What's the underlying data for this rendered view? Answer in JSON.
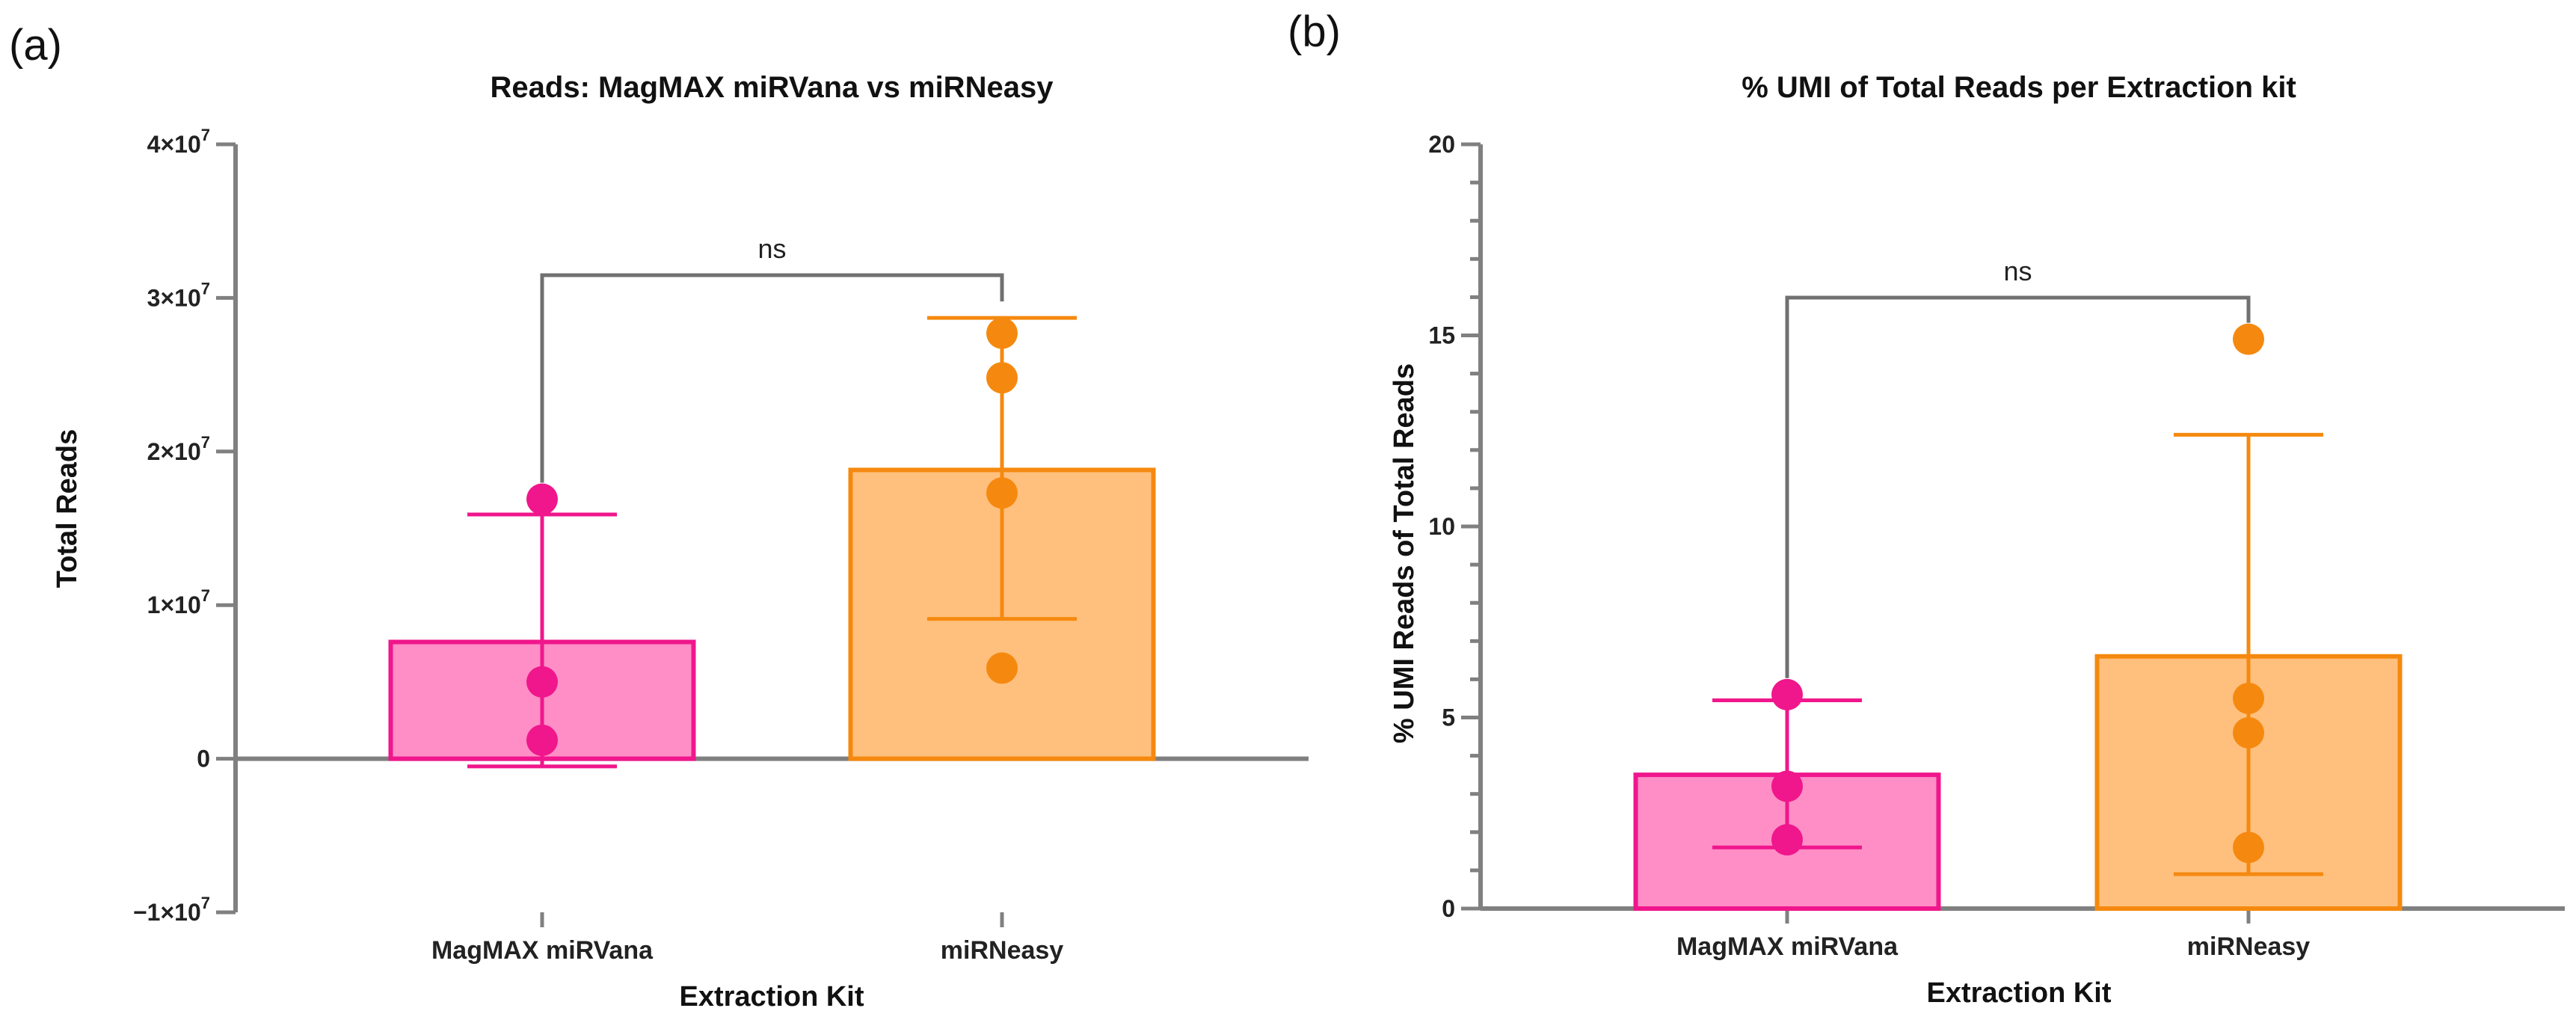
{
  "panels": [
    {
      "label": "(a)",
      "chart_data": {
        "type": "bar",
        "title": "Reads: MagMAX miRVana vs miRNeasy",
        "xlabel": "Extraction Kit",
        "ylabel": "Total Reads",
        "categories": [
          "MagMAX miRVana",
          "miRNeasy"
        ],
        "ylim": [
          -10000000,
          40000000
        ],
        "yticks": [
          {
            "value": -10000000,
            "label": "−1×10",
            "exp": "7"
          },
          {
            "value": 0,
            "label": "0",
            "exp": ""
          },
          {
            "value": 10000000,
            "label": "1×10",
            "exp": "7"
          },
          {
            "value": 20000000,
            "label": "2×10",
            "exp": "7"
          },
          {
            "value": 30000000,
            "label": "3×10",
            "exp": "7"
          },
          {
            "value": 40000000,
            "label": "4×10",
            "exp": "7"
          }
        ],
        "minor_ticks": false,
        "bars": [
          {
            "category": "MagMAX miRVana",
            "mean": 7600000,
            "err_low": -500000,
            "err_high": 15900000,
            "points": [
              16900000,
              5000000,
              1200000
            ],
            "fill": "#FF8EC6",
            "stroke": "#F0168C"
          },
          {
            "category": "miRNeasy",
            "mean": 18800000,
            "err_low": 9100000,
            "err_high": 28700000,
            "points": [
              27700000,
              24800000,
              17300000,
              5900000
            ],
            "fill": "#FFC07E",
            "stroke": "#F5890F"
          }
        ],
        "significance": {
          "label": "ns",
          "from": "MagMAX miRVana",
          "to": "miRNeasy"
        }
      }
    },
    {
      "label": "(b)",
      "chart_data": {
        "type": "bar",
        "title": "% UMI of Total Reads per Extraction kit",
        "xlabel": "Extraction Kit",
        "ylabel": "% UMI Reads of Total Reads",
        "categories": [
          "MagMAX miRVana",
          "miRNeasy"
        ],
        "ylim": [
          0,
          20
        ],
        "yticks": [
          {
            "value": 0,
            "label": "0",
            "exp": ""
          },
          {
            "value": 5,
            "label": "5",
            "exp": ""
          },
          {
            "value": 10,
            "label": "10",
            "exp": ""
          },
          {
            "value": 15,
            "label": "15",
            "exp": ""
          },
          {
            "value": 20,
            "label": "20",
            "exp": ""
          }
        ],
        "minor_ticks": true,
        "bars": [
          {
            "category": "MagMAX miRVana",
            "mean": 3.5,
            "err_low": 1.6,
            "err_high": 5.45,
            "points": [
              5.6,
              3.2,
              1.8
            ],
            "fill": "#FF8EC6",
            "stroke": "#F0168C"
          },
          {
            "category": "miRNeasy",
            "mean": 6.6,
            "err_low": 0.9,
            "err_high": 12.4,
            "points": [
              14.9,
              5.5,
              4.6,
              1.6
            ],
            "fill": "#FFC07E",
            "stroke": "#F5890F"
          }
        ],
        "significance": {
          "label": "ns",
          "from": "MagMAX miRVana",
          "to": "miRNeasy"
        }
      }
    }
  ]
}
